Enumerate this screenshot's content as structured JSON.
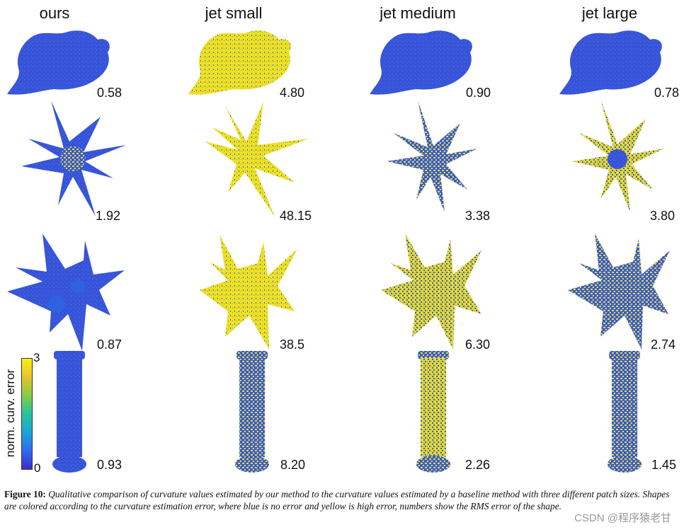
{
  "columns": [
    "ours",
    "jet small",
    "jet medium",
    "jet large"
  ],
  "rows": [
    {
      "shape": "dragon",
      "values": [
        "0.58",
        "4.80",
        "0.90",
        "0.78"
      ]
    },
    {
      "shape": "spiky-star",
      "values": [
        "1.92",
        "48.15",
        "3.38",
        "3.80"
      ]
    },
    {
      "shape": "noisy-star",
      "values": [
        "0.87",
        "38.5",
        "6.30",
        "2.74"
      ]
    },
    {
      "shape": "column",
      "values": [
        "0.93",
        "8.20",
        "2.26",
        "1.45"
      ]
    }
  ],
  "colorbar": {
    "max": "3",
    "min": "0",
    "label": "norm. curv. error"
  },
  "caption": {
    "label": "Figure 10:",
    "text": "Qualitative comparison of curvature values estimated by our method to the curvature values estimated by a baseline method with three different patch sizes. Shapes are colored according to the curvature estimation error, where blue is no error and yellow is high error, numbers show the RMS error of the shape."
  },
  "watermark": "CSDN @程序猿老甘",
  "colors": {
    "blue": "#3b4fd6",
    "yellow": "#f2e21c",
    "teal": "#22b3b8"
  }
}
